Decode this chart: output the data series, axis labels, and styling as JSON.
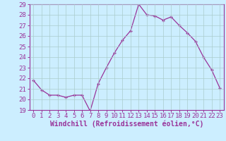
{
  "x": [
    0,
    1,
    2,
    3,
    4,
    5,
    6,
    7,
    8,
    9,
    10,
    11,
    12,
    13,
    14,
    15,
    16,
    17,
    18,
    19,
    20,
    21,
    22,
    23
  ],
  "y": [
    21.8,
    20.9,
    20.4,
    20.4,
    20.2,
    20.4,
    20.4,
    18.9,
    21.5,
    23.0,
    24.4,
    25.6,
    26.5,
    29.0,
    28.0,
    27.9,
    27.5,
    27.8,
    27.0,
    26.3,
    25.5,
    24.0,
    22.8,
    21.1
  ],
  "ylim": [
    19,
    29
  ],
  "yticks": [
    19,
    20,
    21,
    22,
    23,
    24,
    25,
    26,
    27,
    28,
    29
  ],
  "xticks": [
    0,
    1,
    2,
    3,
    4,
    5,
    6,
    7,
    8,
    9,
    10,
    11,
    12,
    13,
    14,
    15,
    16,
    17,
    18,
    19,
    20,
    21,
    22,
    23
  ],
  "xlabel": "Windchill (Refroidissement éolien,°C)",
  "line_color": "#993399",
  "marker": "+",
  "bg_color": "#cceeff",
  "grid_color": "#aacccc",
  "tick_color": "#993399",
  "label_color": "#993399",
  "font_size": 6.5,
  "xlabel_fontsize": 7,
  "marker_size": 3.5,
  "line_width": 0.9
}
